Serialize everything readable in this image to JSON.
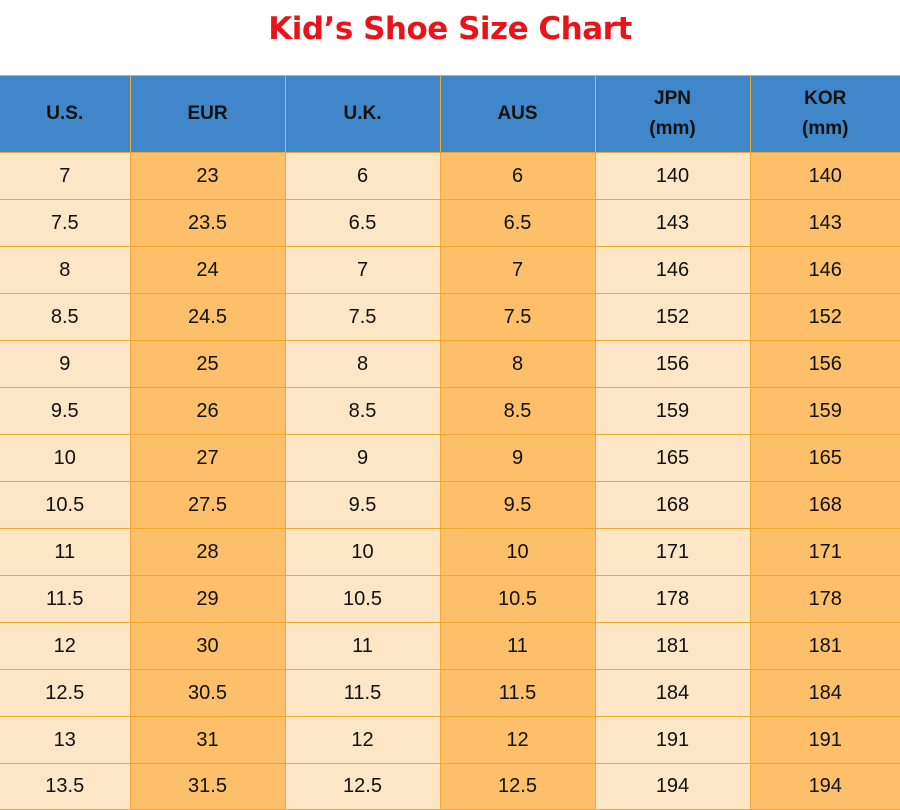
{
  "title": "Kid’s Shoe Size Chart",
  "colors": {
    "title": "#e8141a",
    "header_bg": "#3f87c9",
    "cell_light": "#fde6c6",
    "cell_dark": "#fdbf6a",
    "grid": "#f0a830"
  },
  "table": {
    "headers": [
      [
        "U.S."
      ],
      [
        "EUR"
      ],
      [
        "U.K."
      ],
      [
        "AUS"
      ],
      [
        "JPN",
        "(mm)"
      ],
      [
        "KOR",
        "(mm)"
      ]
    ],
    "rows": [
      [
        "7",
        "23",
        "6",
        "6",
        "140",
        "140"
      ],
      [
        "7.5",
        "23.5",
        "6.5",
        "6.5",
        "143",
        "143"
      ],
      [
        "8",
        "24",
        "7",
        "7",
        "146",
        "146"
      ],
      [
        "8.5",
        "24.5",
        "7.5",
        "7.5",
        "152",
        "152"
      ],
      [
        "9",
        "25",
        "8",
        "8",
        "156",
        "156"
      ],
      [
        "9.5",
        "26",
        "8.5",
        "8.5",
        "159",
        "159"
      ],
      [
        "10",
        "27",
        "9",
        "9",
        "165",
        "165"
      ],
      [
        "10.5",
        "27.5",
        "9.5",
        "9.5",
        "168",
        "168"
      ],
      [
        "11",
        "28",
        "10",
        "10",
        "171",
        "171"
      ],
      [
        "11.5",
        "29",
        "10.5",
        "10.5",
        "178",
        "178"
      ],
      [
        "12",
        "30",
        "11",
        "11",
        "181",
        "181"
      ],
      [
        "12.5",
        "30.5",
        "11.5",
        "11.5",
        "184",
        "184"
      ],
      [
        "13",
        "31",
        "12",
        "12",
        "191",
        "191"
      ],
      [
        "13.5",
        "31.5",
        "12.5",
        "12.5",
        "194",
        "194"
      ]
    ]
  }
}
